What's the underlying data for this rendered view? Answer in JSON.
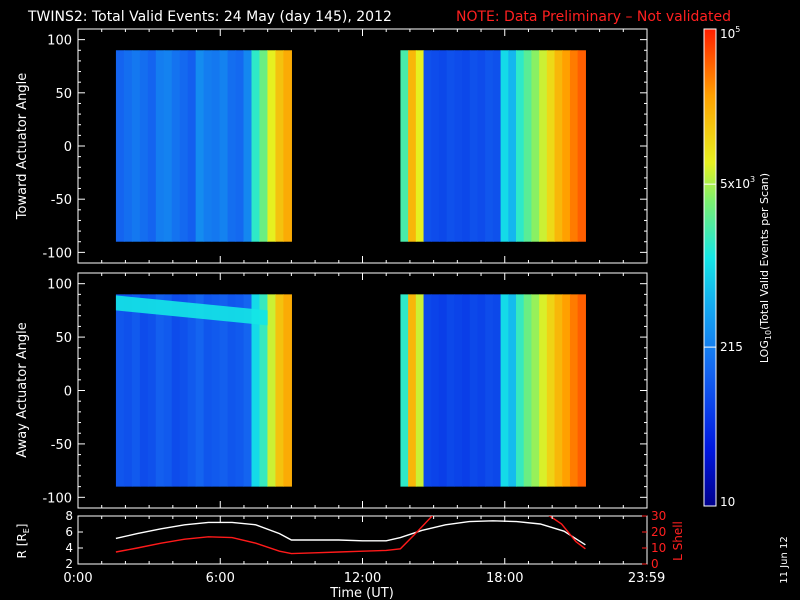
{
  "title": {
    "main": "TWINS2: Total Valid Events: 24 May (day 145), 2012",
    "note": "NOTE: Data Preliminary – Not validated"
  },
  "colors": {
    "background": "#000000",
    "note": "#ff2020",
    "r_line": "#ffffff",
    "lshell_line": "#ff1a1a"
  },
  "footer_stamp": "11 Jun 12",
  "chart_data": [
    {
      "type": "heatmap",
      "ylabel": "Toward Actuator Angle",
      "ylim": [
        -110,
        110
      ],
      "yticks": [
        100,
        50,
        0,
        -50,
        -100
      ],
      "xlim": [
        0,
        24
      ],
      "segments": [
        {
          "t_start": 1.6,
          "t_end": 9.0,
          "angle_range": [
            -90,
            90
          ],
          "columns_log_level": [
            0.28,
            0.3,
            0.32,
            0.3,
            0.28,
            0.33,
            0.34,
            0.31,
            0.29,
            0.27,
            0.36,
            0.33,
            0.32,
            0.34,
            0.3,
            0.29,
            0.35,
            0.55,
            0.62,
            0.72,
            0.8,
            0.84
          ],
          "features": []
        },
        {
          "t_start": 13.6,
          "t_end": 21.4,
          "angle_range": [
            -90,
            90
          ],
          "columns_log_level": [
            0.58,
            0.82,
            0.72,
            0.24,
            0.23,
            0.22,
            0.24,
            0.23,
            0.22,
            0.24,
            0.23,
            0.25,
            0.24,
            0.5,
            0.44,
            0.55,
            0.6,
            0.65,
            0.7,
            0.76,
            0.82,
            0.86,
            0.9,
            0.93
          ],
          "features": []
        }
      ]
    },
    {
      "type": "heatmap",
      "ylabel": "Away Actuator Angle",
      "ylim": [
        -110,
        110
      ],
      "yticks": [
        100,
        50,
        0,
        -50,
        -100
      ],
      "xlim": [
        0,
        24
      ],
      "segments": [
        {
          "t_start": 1.6,
          "t_end": 9.0,
          "angle_range": [
            -90,
            90
          ],
          "columns_log_level": [
            0.25,
            0.24,
            0.26,
            0.23,
            0.24,
            0.27,
            0.26,
            0.23,
            0.24,
            0.26,
            0.28,
            0.25,
            0.26,
            0.27,
            0.25,
            0.26,
            0.28,
            0.5,
            0.56,
            0.7,
            0.8,
            0.84
          ],
          "features": [
            {
              "t_start": 1.6,
              "t_end": 8.0,
              "angle_start": 82,
              "angle_end": 68,
              "width_deg": 14,
              "log_level": 0.52
            }
          ]
        },
        {
          "t_start": 13.6,
          "t_end": 21.4,
          "angle_range": [
            -90,
            90
          ],
          "columns_log_level": [
            0.55,
            0.82,
            0.7,
            0.22,
            0.21,
            0.2,
            0.22,
            0.21,
            0.2,
            0.22,
            0.21,
            0.23,
            0.22,
            0.5,
            0.45,
            0.56,
            0.62,
            0.66,
            0.71,
            0.77,
            0.82,
            0.86,
            0.9,
            0.93
          ],
          "features": []
        }
      ]
    },
    {
      "type": "line",
      "ylabel_left": "R [R",
      "ylabel_left_sub": "E",
      "ylabel_right": "L Shell",
      "ylim_left": [
        2,
        8
      ],
      "yticks_left": [
        8,
        6,
        4,
        2
      ],
      "ylim_right": [
        0,
        30
      ],
      "yticks_right": [
        30,
        20,
        10,
        0
      ],
      "xlabel": "Time (UT)",
      "xticks": [
        "0:00",
        "6:00",
        "12:00",
        "18:00",
        "23:59"
      ],
      "xtick_values": [
        0,
        6,
        12,
        18,
        23.983
      ],
      "xlim": [
        0,
        24
      ],
      "series": [
        {
          "axis": "left",
          "color": "#ffffff",
          "x": [
            1.6,
            2.5,
            3.5,
            4.5,
            5.5,
            6.5,
            7.5,
            8.5,
            9.0,
            10,
            11,
            12,
            13,
            13.6,
            14.5,
            15.5,
            16.5,
            17.5,
            18.5,
            19.5,
            20.5,
            21.4
          ],
          "y": [
            5.2,
            5.8,
            6.4,
            6.9,
            7.2,
            7.2,
            6.9,
            5.8,
            5.0,
            5.0,
            5.0,
            4.9,
            4.9,
            5.3,
            6.2,
            6.9,
            7.3,
            7.4,
            7.3,
            7.0,
            6.1,
            4.4
          ]
        },
        {
          "axis": "right",
          "color": "#ff1a1a",
          "x": [
            1.6,
            2.5,
            3.5,
            4.5,
            5.5,
            6.5,
            7.5,
            8.5,
            9.0,
            10,
            11,
            12,
            13,
            13.6,
            14.3,
            15.0
          ],
          "y": [
            7.5,
            10,
            13,
            15.5,
            17,
            16.5,
            13,
            8,
            6.5,
            7,
            7.5,
            8,
            8.5,
            9.5,
            20,
            31
          ]
        },
        {
          "axis": "right",
          "color": "#ff1a1a",
          "x": [
            19.8,
            20.4,
            21.0,
            21.4
          ],
          "y": [
            31,
            25,
            14,
            9.5
          ]
        }
      ]
    }
  ],
  "colorbar": {
    "label": "LOG",
    "label_sub": "10",
    "label_rest": "(Total Valid Events per Scan)",
    "log_min": 1,
    "log_max": 5,
    "ticks": [
      {
        "value": 100000,
        "text": "10",
        "sup": "5"
      },
      {
        "value": 5000,
        "text": "5x10",
        "sup": "3"
      },
      {
        "value": 215,
        "text": "215",
        "sup": ""
      },
      {
        "value": 10,
        "text": "10",
        "sup": ""
      }
    ]
  }
}
